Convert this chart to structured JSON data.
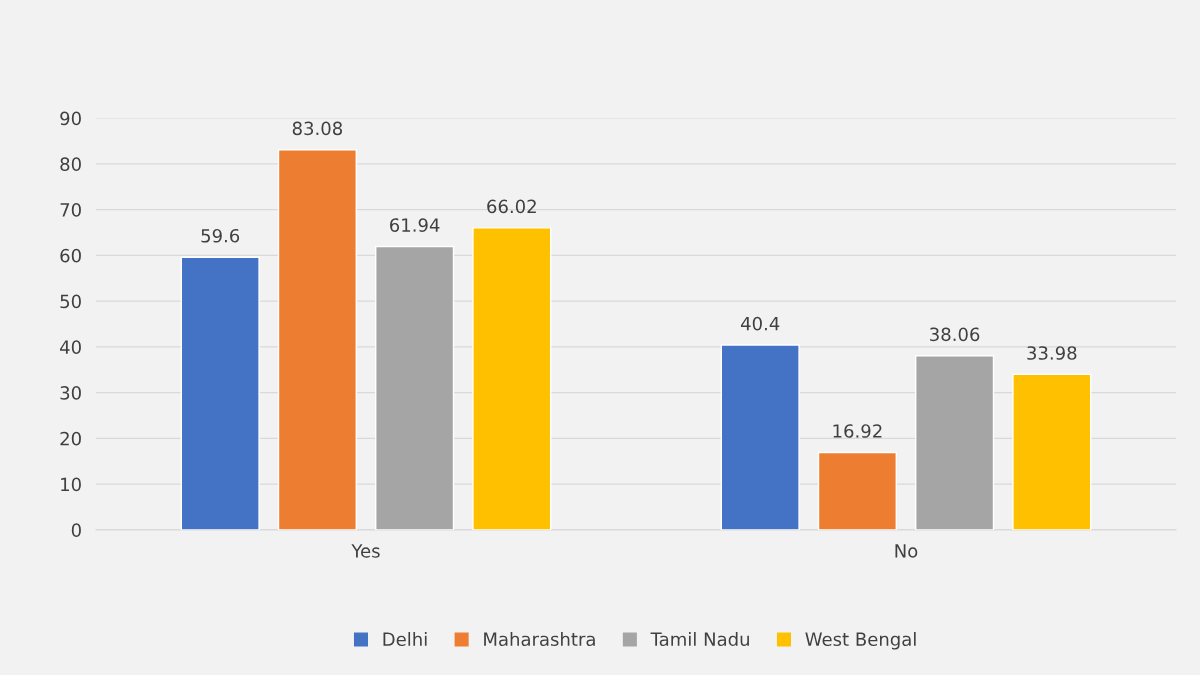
{
  "chart_data": {
    "type": "bar",
    "categories": [
      "Yes",
      "No"
    ],
    "series": [
      {
        "name": "Delhi",
        "color": "#4472c4",
        "values": [
          59.6,
          40.4
        ]
      },
      {
        "name": "Maharashtra",
        "color": "#ed7d31",
        "values": [
          83.08,
          16.92
        ]
      },
      {
        "name": "Tamil Nadu",
        "color": "#a5a5a5",
        "values": [
          61.94,
          38.06
        ]
      },
      {
        "name": "West Bengal",
        "color": "#ffc000",
        "values": [
          66.02,
          33.98
        ]
      }
    ],
    "ylim": [
      0,
      90
    ],
    "yticks": [
      0,
      10,
      20,
      30,
      40,
      50,
      60,
      70,
      80,
      90
    ],
    "grid": "y",
    "legend": "bottom",
    "data_labels": true
  }
}
